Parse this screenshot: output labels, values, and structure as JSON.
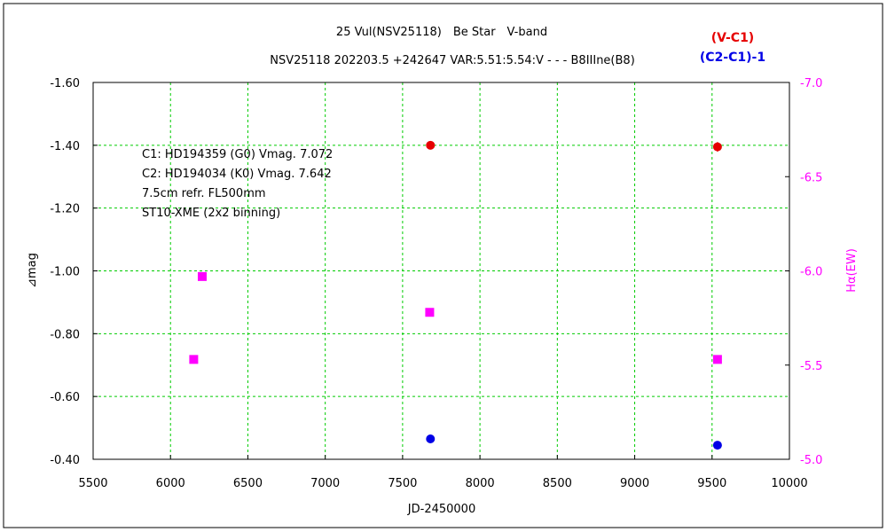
{
  "chart_data": {
    "type": "scatter",
    "title": "25 Vul(NSV25118)　Be Star　V-band",
    "subtitle": "NSV25118 202203.5 +242647 VAR:5.51:5.54:V - - - B8IIIne(B8)",
    "xlabel": "JD-2450000",
    "ylabel_left": "⊿mag",
    "ylabel_right": "Hα(EW)",
    "xlim": [
      5500,
      10000
    ],
    "ylim_left": [
      -0.4,
      -1.6
    ],
    "ylim_right": [
      -5.0,
      -7.0
    ],
    "x_ticks": [
      "5500",
      "6000",
      "6500",
      "7000",
      "7500",
      "8000",
      "8500",
      "9000",
      "9500",
      "10000"
    ],
    "y_ticks_left": [
      "-1.60",
      "-1.40",
      "-1.20",
      "-1.00",
      "-0.80",
      "-0.60",
      "-0.40"
    ],
    "y_ticks_right": [
      "-7.0",
      "-6.5",
      "-6.0",
      "-5.5",
      "-5.0"
    ],
    "grid": true,
    "legend_position": "top-right",
    "legend": [
      {
        "label": "(V-C1)",
        "color": "#e60000"
      },
      {
        "label": "(C2-C1)-1",
        "color": "#0000e6"
      }
    ],
    "annotations": [
      "C1: HD194359 (G0) Vmag. 7.072",
      "C2: HD194034 (K0) Vmag. 7.642",
      "7.5cm refr. FL500mm",
      "ST10-XME (2x2 binning)"
    ],
    "series": [
      {
        "name": "(V-C1)",
        "axis": "left",
        "marker": "circle",
        "color": "#e60000",
        "x": [
          7680,
          9535
        ],
        "y": [
          -1.4,
          -1.395
        ],
        "yerr": [
          0.005,
          0.015
        ]
      },
      {
        "name": "(C2-C1)-1",
        "axis": "left",
        "marker": "circle",
        "color": "#0000e6",
        "x": [
          7680,
          9535
        ],
        "y": [
          -0.465,
          -0.445
        ]
      },
      {
        "name": "Hα(EW)",
        "axis": "right",
        "marker": "square",
        "color": "#ff00ff",
        "x": [
          6150,
          6205,
          7675,
          9535
        ],
        "y": [
          -5.53,
          -5.97,
          -5.78,
          -5.53
        ]
      }
    ]
  }
}
